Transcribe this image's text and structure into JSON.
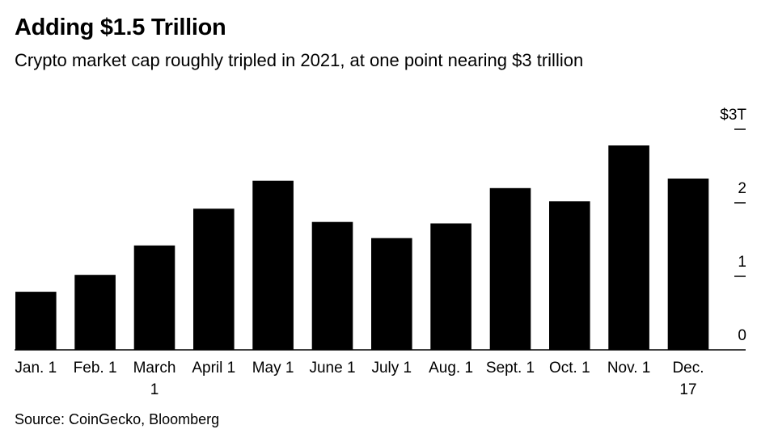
{
  "title": "Adding $1.5 Trillion",
  "subtitle": "Crypto market cap roughly tripled in 2021, at one point nearing $3 trillion",
  "source": "Source: CoinGecko, Bloomberg",
  "chart_data": {
    "type": "bar",
    "categories": [
      [
        "Jan. 1"
      ],
      [
        "Feb. 1"
      ],
      [
        "March",
        "1"
      ],
      [
        "April 1"
      ],
      [
        "May 1"
      ],
      [
        "June 1"
      ],
      [
        "July 1"
      ],
      [
        "Aug. 1"
      ],
      [
        "Sept. 1"
      ],
      [
        "Oct. 1"
      ],
      [
        "Nov. 1"
      ],
      [
        "Dec.",
        "17"
      ]
    ],
    "values": [
      0.79,
      1.02,
      1.42,
      1.92,
      2.3,
      1.74,
      1.52,
      1.72,
      2.2,
      2.02,
      2.78,
      2.33
    ],
    "yticks": [
      {
        "value": 0,
        "label": "0"
      },
      {
        "value": 1,
        "label": "1"
      },
      {
        "value": 2,
        "label": "2"
      },
      {
        "value": 3,
        "label": "$3T"
      }
    ],
    "ylim": [
      0,
      3
    ],
    "xlabel": "",
    "ylabel": "",
    "bar_color": "#000000",
    "grid": false
  }
}
